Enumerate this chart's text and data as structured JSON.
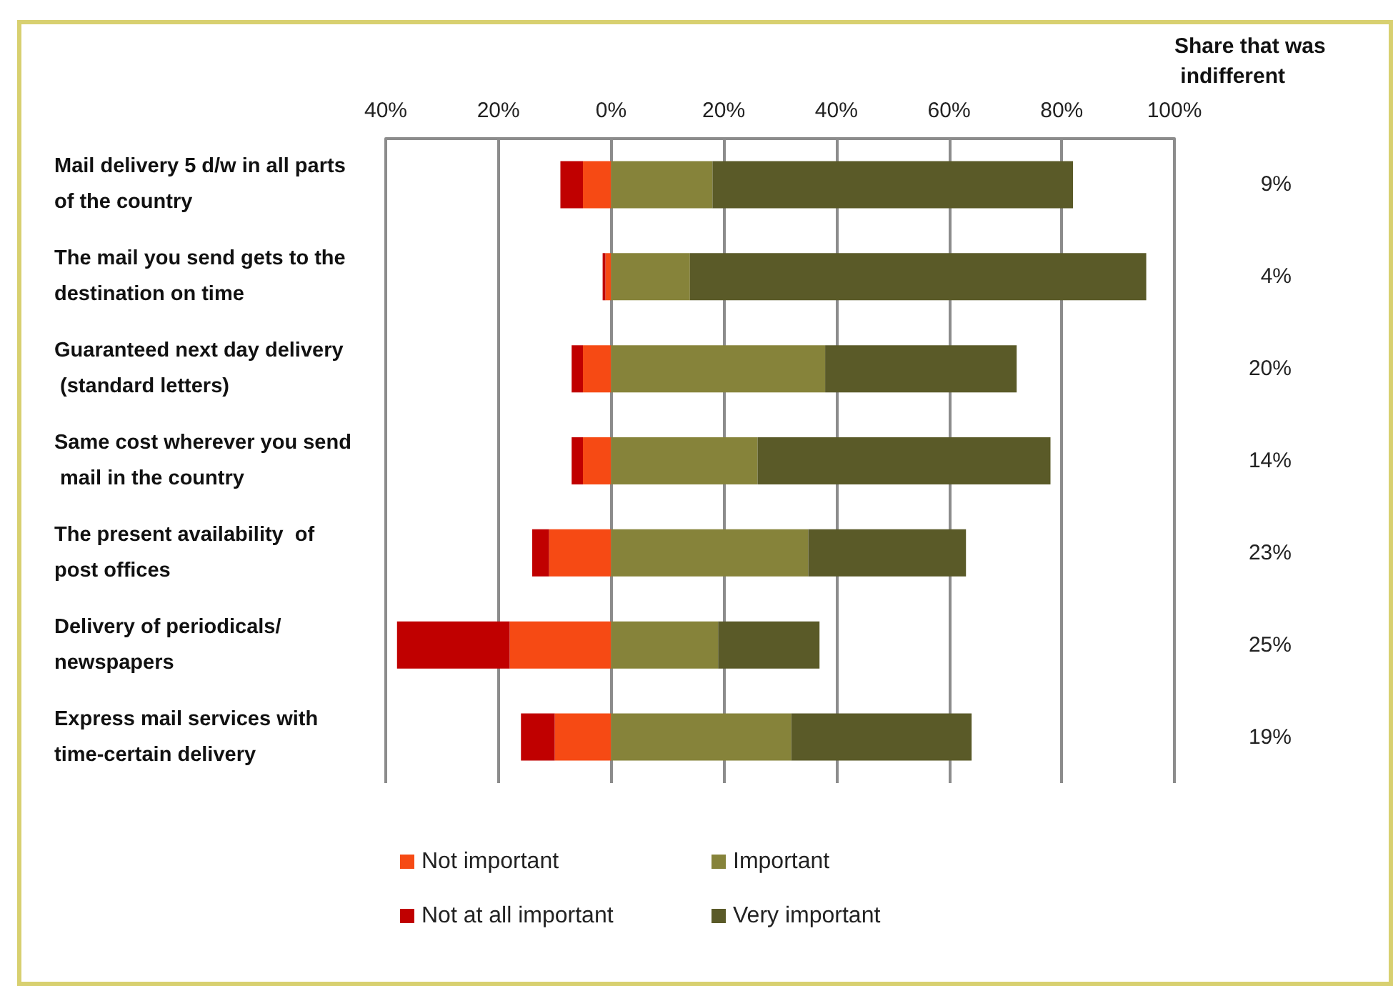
{
  "chart_data": {
    "type": "bar",
    "orientation": "horizontal",
    "stacked": true,
    "categories": [
      "Mail delivery 5 d/w in all parts of the country",
      "The mail you send gets to the destination on time",
      "Guaranteed next day delivery  (standard letters)",
      "Same cost wherever you send mail in the country",
      "The present availability  of post offices",
      "Delivery of periodicals/newspapers",
      "Express mail services with time-certain delivery"
    ],
    "series": [
      {
        "name": "Not important",
        "color": "#f64a14",
        "values": [
          -5,
          -1,
          -5,
          -5,
          -11,
          -18,
          -10
        ]
      },
      {
        "name": "Not at all important",
        "color": "#c00000",
        "values": [
          -4,
          -0.5,
          -2,
          -2,
          -3,
          -20,
          -6
        ]
      },
      {
        "name": "Important",
        "color": "#86833a",
        "values": [
          18,
          14,
          38,
          26,
          35,
          19,
          32
        ]
      },
      {
        "name": "Very important",
        "color": "#5a5a28",
        "values": [
          64,
          81,
          34,
          52,
          28,
          18,
          32
        ]
      }
    ],
    "xlim": [
      -40,
      100
    ],
    "xticks": [
      {
        "value": -40,
        "label": "40%"
      },
      {
        "value": -20,
        "label": "20%"
      },
      {
        "value": 0,
        "label": "0%"
      },
      {
        "value": 20,
        "label": "20%"
      },
      {
        "value": 40,
        "label": "40%"
      },
      {
        "value": 60,
        "label": "60%"
      },
      {
        "value": 80,
        "label": "80%"
      },
      {
        "value": 100,
        "label": "100%"
      }
    ],
    "grid": "x",
    "legend": "bottom",
    "annotations": [
      "Share that was indifferent",
      "9%",
      "4%",
      "20%",
      "14%",
      "23%",
      "25%",
      "19%"
    ]
  }
}
